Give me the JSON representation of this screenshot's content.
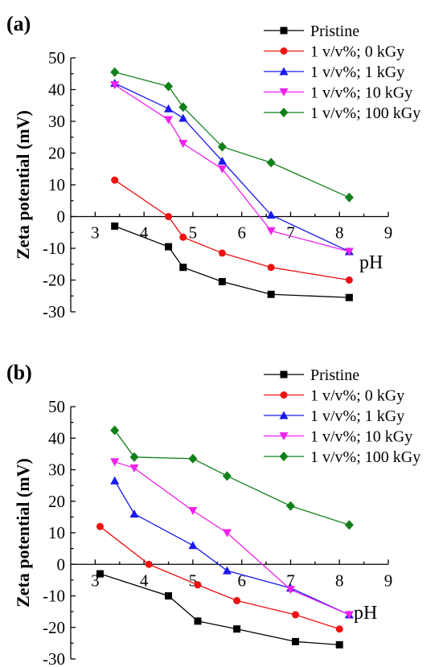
{
  "chart_data": [
    {
      "type": "line",
      "panel_label": "(a)",
      "xlabel": "pH",
      "ylabel": "Zeta potential (mV)",
      "xlim": [
        2.5,
        9
      ],
      "ylim": [
        -30,
        50
      ],
      "xticks": [
        3,
        4,
        5,
        6,
        7,
        8,
        9
      ],
      "yticks": [
        -30,
        -20,
        -10,
        0,
        10,
        20,
        30,
        40,
        50
      ],
      "grid": false,
      "legend_position": "top-right",
      "series": [
        {
          "name": "Pristine",
          "color": "#000000",
          "marker": "square",
          "x": [
            3.4,
            4.5,
            4.8,
            5.6,
            6.6,
            8.2
          ],
          "y": [
            -3,
            -9.5,
            -16,
            -20.5,
            -24.5,
            -25.5
          ]
        },
        {
          "name": "1 v/v%; 0 kGy",
          "color": "#ee1111",
          "marker": "circle",
          "x": [
            3.4,
            4.5,
            4.8,
            5.6,
            6.6,
            8.2
          ],
          "y": [
            11.5,
            0,
            -6.5,
            -11.5,
            -16,
            -20
          ]
        },
        {
          "name": "1 v/v%; 1 kGy",
          "color": "#1a1aee",
          "marker": "triangle-up",
          "x": [
            3.4,
            4.5,
            4.8,
            5.6,
            6.6,
            8.2
          ],
          "y": [
            42,
            34,
            31,
            17.5,
            0.5,
            -11
          ]
        },
        {
          "name": "1 v/v%; 10 kGy",
          "color": "#ee22ee",
          "marker": "triangle-down",
          "x": [
            3.4,
            4.5,
            4.8,
            5.6,
            6.6,
            8.2
          ],
          "y": [
            41.5,
            30.5,
            23,
            15,
            -4.5,
            -11
          ]
        },
        {
          "name": "1 v/v%; 100 kGy",
          "color": "#11801a",
          "marker": "diamond",
          "x": [
            3.4,
            4.5,
            4.8,
            5.6,
            6.6,
            8.2
          ],
          "y": [
            45.5,
            41,
            34.5,
            22,
            17,
            6
          ]
        }
      ]
    },
    {
      "type": "line",
      "panel_label": "(b)",
      "xlabel": "pH",
      "ylabel": "Zeta potential (mV)",
      "xlim": [
        2.5,
        9
      ],
      "ylim": [
        -30,
        50
      ],
      "xticks": [
        3,
        4,
        5,
        6,
        7,
        8,
        9
      ],
      "yticks": [
        -30,
        -20,
        -10,
        0,
        10,
        20,
        30,
        40,
        50
      ],
      "grid": false,
      "legend_position": "top-right",
      "series": [
        {
          "name": "Pristine",
          "color": "#000000",
          "marker": "square",
          "x": [
            3.1,
            4.5,
            5.1,
            5.9,
            7.1,
            8.0
          ],
          "y": [
            -3,
            -10,
            -18,
            -20.5,
            -24.5,
            -25.5
          ]
        },
        {
          "name": "1 v/v%; 0 kGy",
          "color": "#ee1111",
          "marker": "circle",
          "x": [
            3.1,
            4.1,
            5.1,
            5.9,
            7.1,
            8.0
          ],
          "y": [
            12,
            0,
            -6.5,
            -11.5,
            -16,
            -20.5
          ]
        },
        {
          "name": "1 v/v%; 1 kGy",
          "color": "#1a1aee",
          "marker": "triangle-up",
          "x": [
            3.4,
            3.8,
            5.0,
            5.7,
            7.0,
            8.2
          ],
          "y": [
            26.5,
            16,
            6,
            -2,
            -7.5,
            -16
          ]
        },
        {
          "name": "1 v/v%; 10 kGy",
          "color": "#ee22ee",
          "marker": "triangle-down",
          "x": [
            3.4,
            3.8,
            5.0,
            5.7,
            7.0,
            8.2
          ],
          "y": [
            32.5,
            30.5,
            17,
            10,
            -8,
            -16
          ]
        },
        {
          "name": "1 v/v%; 100 kGy",
          "color": "#11801a",
          "marker": "diamond",
          "x": [
            3.4,
            3.8,
            5.0,
            5.7,
            7.0,
            8.2
          ],
          "y": [
            42.5,
            34,
            33.5,
            28,
            18.5,
            12.5
          ]
        }
      ]
    }
  ]
}
